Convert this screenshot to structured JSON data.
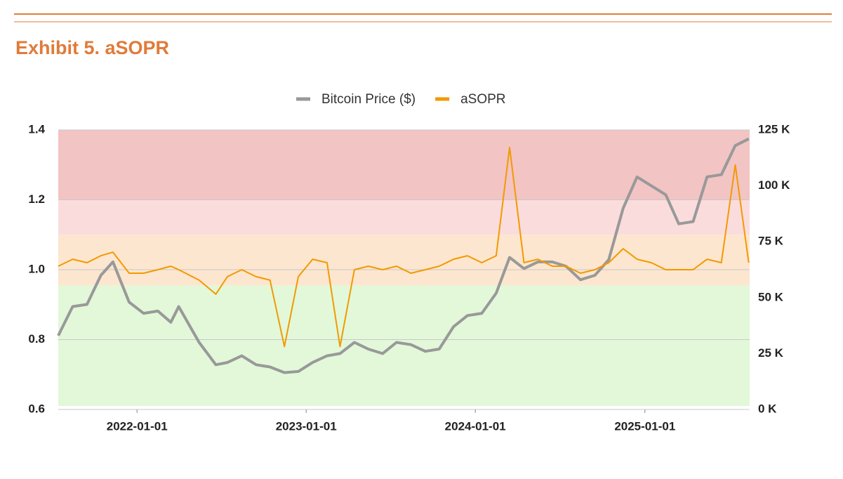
{
  "chart_data": {
    "type": "line",
    "title": "Exhibit 5. aSOPR",
    "x": [
      "2021-07-15",
      "2021-08-15",
      "2021-09-15",
      "2021-10-15",
      "2021-11-10",
      "2021-12-15",
      "2022-01-15",
      "2022-02-15",
      "2022-03-15",
      "2022-04-01",
      "2022-05-15",
      "2022-06-20",
      "2022-07-15",
      "2022-08-15",
      "2022-09-15",
      "2022-10-15",
      "2022-11-15",
      "2022-12-15",
      "2023-01-15",
      "2023-02-15",
      "2023-03-15",
      "2023-04-15",
      "2023-05-15",
      "2023-06-15",
      "2023-07-15",
      "2023-08-15",
      "2023-09-15",
      "2023-10-15",
      "2023-11-15",
      "2023-12-15",
      "2024-01-15",
      "2024-02-15",
      "2024-03-15",
      "2024-04-15",
      "2024-05-15",
      "2024-06-15",
      "2024-07-15",
      "2024-08-15",
      "2024-09-15",
      "2024-10-15",
      "2024-11-15",
      "2024-12-15",
      "2025-01-15",
      "2025-02-15",
      "2025-03-15",
      "2025-04-15",
      "2025-05-15",
      "2025-06-15",
      "2025-07-15",
      "2025-08-13"
    ],
    "series": [
      {
        "name": "Bitcoin Price ($)",
        "color": "#999999",
        "axis": "y2",
        "values": [
          33000,
          46000,
          47000,
          60000,
          66000,
          48000,
          43000,
          44000,
          39000,
          46000,
          30000,
          20000,
          21000,
          24000,
          20000,
          19000,
          16500,
          17000,
          21000,
          24000,
          25000,
          30000,
          27000,
          25000,
          30000,
          29000,
          26000,
          27000,
          37000,
          42000,
          43000,
          52000,
          68000,
          63000,
          66000,
          66000,
          64000,
          58000,
          60000,
          67000,
          90000,
          104000,
          100000,
          96000,
          83000,
          84000,
          104000,
          105000,
          118000,
          121000
        ]
      },
      {
        "name": "aSOPR",
        "color": "#f29a00",
        "values": [
          1.01,
          1.03,
          1.02,
          1.04,
          1.05,
          0.99,
          0.99,
          1.0,
          1.01,
          1.0,
          0.97,
          0.93,
          0.98,
          1.0,
          0.98,
          0.97,
          0.78,
          0.98,
          1.03,
          1.02,
          0.78,
          1.0,
          1.01,
          1.0,
          1.01,
          0.99,
          1.0,
          1.01,
          1.03,
          1.04,
          1.02,
          1.04,
          1.35,
          1.02,
          1.03,
          1.01,
          1.01,
          0.99,
          1.0,
          1.02,
          1.06,
          1.03,
          1.02,
          1.0,
          1.0,
          1.0,
          1.03,
          1.02,
          1.3,
          1.02
        ]
      }
    ],
    "xlim": [
      "2021-07-15",
      "2025-08-15"
    ],
    "xticks": [
      "2022-01-01",
      "2023-01-01",
      "2024-01-01",
      "2025-01-01"
    ],
    "ylim": [
      0.6,
      1.4
    ],
    "yticks": [
      {
        "value": 0.6,
        "label": "0.6"
      },
      {
        "value": 0.8,
        "label": "0.8"
      },
      {
        "value": 1.0,
        "label": "1.0"
      },
      {
        "value": 1.2,
        "label": "1.2"
      },
      {
        "value": 1.4,
        "label": "1.4"
      }
    ],
    "y2lim": [
      0,
      125000
    ],
    "y2ticks": [
      {
        "value": 0,
        "label": "0 K"
      },
      {
        "value": 25000,
        "label": "25 K"
      },
      {
        "value": 50000,
        "label": "50 K"
      },
      {
        "value": 75000,
        "label": "75 K"
      },
      {
        "value": 100000,
        "label": "100 K"
      },
      {
        "value": 125000,
        "label": "125 K"
      }
    ],
    "bands": [
      {
        "from": 0.61,
        "to": 0.955,
        "color": "#e2f8d9"
      },
      {
        "from": 0.955,
        "to": 1.1,
        "color": "#fde6cf"
      },
      {
        "from": 1.1,
        "to": 1.2,
        "color": "#fbdcdc"
      },
      {
        "from": 1.2,
        "to": 1.4,
        "color": "#f2c4c4"
      }
    ],
    "grid": true,
    "legend": "top"
  }
}
